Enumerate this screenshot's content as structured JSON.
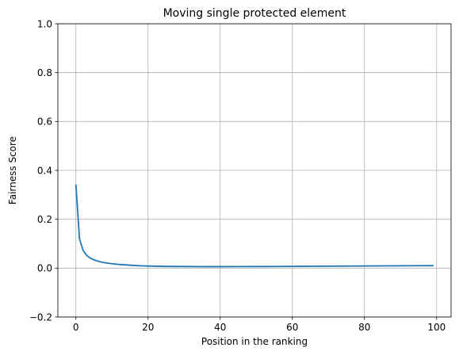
{
  "chart_data": {
    "type": "line",
    "title": "Moving single protected element",
    "xlabel": "Position in the ranking",
    "ylabel": "Fairness Score",
    "xlim": [
      -5,
      104
    ],
    "ylim": [
      -0.2,
      1.0
    ],
    "x_ticks": [
      0,
      20,
      40,
      60,
      80,
      100
    ],
    "y_ticks": [
      -0.2,
      0.0,
      0.2,
      0.4,
      0.6,
      0.8,
      1.0
    ],
    "x_tick_labels": [
      "0",
      "20",
      "40",
      "60",
      "80",
      "100"
    ],
    "y_tick_labels": [
      "−0.2",
      "0.0",
      "0.2",
      "0.4",
      "0.6",
      "0.8",
      "1.0"
    ],
    "grid": true,
    "line_color": "#1f77b4",
    "grid_color": "#b0b0b0",
    "series": [
      {
        "x": [
          0,
          1,
          2,
          3,
          4,
          5,
          6,
          7,
          8,
          9,
          10,
          12,
          14,
          16,
          18,
          20,
          25,
          30,
          35,
          40,
          45,
          50,
          55,
          60,
          65,
          70,
          75,
          80,
          85,
          90,
          95,
          99
        ],
        "y": [
          0.34,
          0.12,
          0.072,
          0.052,
          0.041,
          0.034,
          0.029,
          0.025,
          0.022,
          0.02,
          0.018,
          0.015,
          0.013,
          0.011,
          0.0095,
          0.0085,
          0.007,
          0.0065,
          0.0062,
          0.0062,
          0.0063,
          0.0065,
          0.0068,
          0.0071,
          0.0075,
          0.0079,
          0.0083,
          0.0087,
          0.0091,
          0.0095,
          0.0099,
          0.0102
        ]
      }
    ]
  }
}
